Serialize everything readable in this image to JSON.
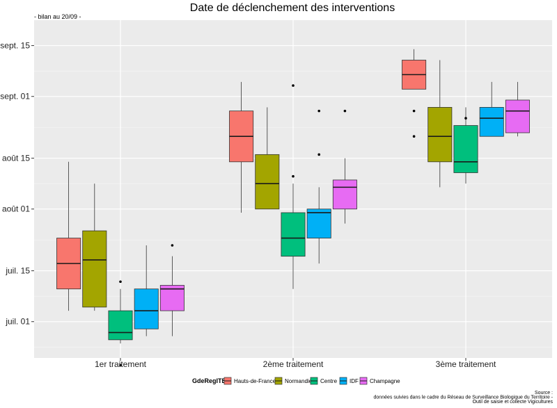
{
  "chart_data": {
    "type": "boxplot",
    "title": "Date de déclenchement des interventions",
    "subtitle": "- bilan au 20/09 -",
    "xlabel": "",
    "ylabel": "",
    "categories": [
      "1er traitement",
      "2ème traitement",
      "3ème traitement"
    ],
    "y_axis": {
      "unit": "date",
      "ylim": [
        "2023-06-21",
        "2023-09-22"
      ],
      "ticks": [
        {
          "value": "2023-07-01",
          "label": "juil. 01"
        },
        {
          "value": "2023-07-15",
          "label": "juil. 15"
        },
        {
          "value": "2023-08-01",
          "label": "août 01"
        },
        {
          "value": "2023-08-15",
          "label": "août 15"
        },
        {
          "value": "2023-09-01",
          "label": "sept. 01"
        },
        {
          "value": "2023-09-15",
          "label": "sept. 15"
        }
      ]
    },
    "grid": true,
    "legend": {
      "title": "GdeRegITB",
      "position": "bottom"
    },
    "series": [
      {
        "name": "Hauts-de-France",
        "color": "#F8766D",
        "boxes": [
          {
            "whisker_low": "2023-07-04",
            "q1": "2023-07-10",
            "median": "2023-07-17",
            "q3": "2023-07-24",
            "whisker_high": "2023-08-14",
            "outliers": []
          },
          {
            "whisker_low": "2023-07-31",
            "q1": "2023-08-14",
            "median": "2023-08-21",
            "q3": "2023-08-28",
            "whisker_high": "2023-09-05",
            "outliers": []
          },
          {
            "whisker_low": "2023-09-03",
            "q1": "2023-09-03",
            "median": "2023-09-07",
            "q3": "2023-09-11",
            "whisker_high": "2023-09-14",
            "outliers": [
              "2023-08-21",
              "2023-08-28"
            ]
          }
        ]
      },
      {
        "name": "Normandie",
        "color": "#A3A500",
        "boxes": [
          {
            "whisker_low": "2023-07-04",
            "q1": "2023-07-05",
            "median": "2023-07-18",
            "q3": "2023-07-26",
            "whisker_high": "2023-08-08",
            "outliers": []
          },
          {
            "whisker_low": "2023-08-01",
            "q1": "2023-08-01",
            "median": "2023-08-08",
            "q3": "2023-08-16",
            "whisker_high": "2023-08-29",
            "outliers": []
          },
          {
            "whisker_low": "2023-08-07",
            "q1": "2023-08-14",
            "median": "2023-08-21",
            "q3": "2023-08-29",
            "whisker_high": "2023-09-11",
            "outliers": []
          }
        ]
      },
      {
        "name": "Centre",
        "color": "#00BF7D",
        "boxes": [
          {
            "whisker_low": "2023-06-25",
            "q1": "2023-06-26",
            "median": "2023-06-28",
            "q3": "2023-07-04",
            "whisker_high": "2023-07-10",
            "outliers": [
              "2023-07-12",
              "2023-06-19"
            ]
          },
          {
            "whisker_low": "2023-07-10",
            "q1": "2023-07-19",
            "median": "2023-07-24",
            "q3": "2023-07-31",
            "whisker_high": "2023-08-08",
            "outliers": [
              "2023-08-10",
              "2023-09-04"
            ]
          },
          {
            "whisker_low": "2023-08-08",
            "q1": "2023-08-11",
            "median": "2023-08-14",
            "q3": "2023-08-24",
            "whisker_high": "2023-08-29",
            "outliers": [
              "2023-08-26"
            ]
          }
        ]
      },
      {
        "name": "IDF",
        "color": "#00B0F6",
        "boxes": [
          {
            "whisker_low": "2023-06-27",
            "q1": "2023-06-29",
            "median": "2023-07-04",
            "q3": "2023-07-10",
            "whisker_high": "2023-07-22",
            "outliers": []
          },
          {
            "whisker_low": "2023-07-17",
            "q1": "2023-07-24",
            "median": "2023-07-31",
            "q3": "2023-08-01",
            "whisker_high": "2023-08-07",
            "outliers": [
              "2023-08-16",
              "2023-08-28"
            ]
          },
          {
            "whisker_low": "2023-08-21",
            "q1": "2023-08-21",
            "median": "2023-08-26",
            "q3": "2023-08-29",
            "whisker_high": "2023-09-05",
            "outliers": []
          }
        ]
      },
      {
        "name": "Champagne",
        "color": "#E76BF3",
        "boxes": [
          {
            "whisker_low": "2023-06-27",
            "q1": "2023-07-04",
            "median": "2023-07-10",
            "q3": "2023-07-11",
            "whisker_high": "2023-07-19",
            "outliers": [
              "2023-07-22"
            ]
          },
          {
            "whisker_low": "2023-07-28",
            "q1": "2023-08-01",
            "median": "2023-08-07",
            "q3": "2023-08-09",
            "whisker_high": "2023-08-15",
            "outliers": [
              "2023-08-28"
            ]
          },
          {
            "whisker_low": "2023-08-21",
            "q1": "2023-08-22",
            "median": "2023-08-28",
            "q3": "2023-08-31",
            "whisker_high": "2023-09-05",
            "outliers": []
          }
        ]
      }
    ],
    "caption": [
      "Source :",
      "données suivies dans le cadre du Réseau de Surveillance Biologique du Territoire -",
      "Outil de saisie et collecte Vigicultures"
    ]
  }
}
